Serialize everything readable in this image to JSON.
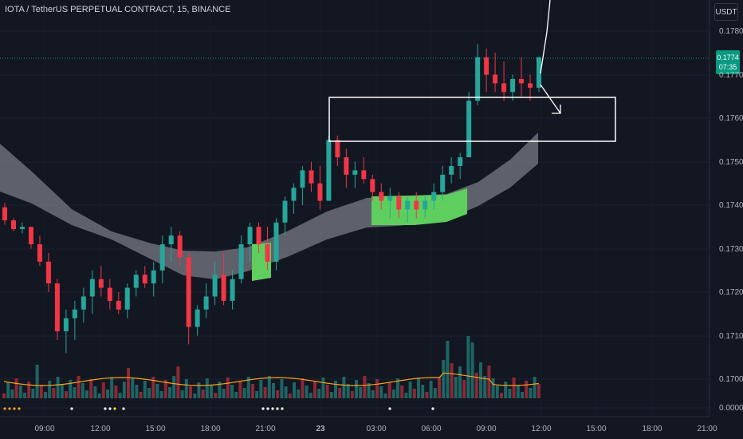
{
  "header": {
    "title": "IOTA / TetherUS PERPETUAL CONTRACT, 15, BINANCE"
  },
  "currency": "USDT",
  "last_price": {
    "value": "0.1774",
    "countdown": "07:35"
  },
  "colors": {
    "bull": "#26a69a",
    "bear": "#f23645",
    "zone": "#5ecf5e",
    "band": "#787b86",
    "ma": "#f7a21b",
    "bg": "#131722"
  },
  "chart_data": {
    "type": "candlestick",
    "y_ticks": [
      "0.1780",
      "0.1770",
      "0.1760",
      "0.1750",
      "0.1740",
      "0.1730",
      "0.1720",
      "0.1710",
      "0.1700",
      "0.0000"
    ],
    "x_ticks": [
      "09:00",
      "12:00",
      "15:00",
      "18:00",
      "21:00",
      "23",
      "03:00",
      "06:00",
      "09:00",
      "12:00",
      "15:00",
      "18:00",
      "21:00"
    ],
    "candles": [
      {
        "o": 0.17395,
        "h": 0.17405,
        "l": 0.17355,
        "c": 0.17365
      },
      {
        "o": 0.17365,
        "h": 0.1737,
        "l": 0.1734,
        "c": 0.17345
      },
      {
        "o": 0.17345,
        "h": 0.1736,
        "l": 0.17335,
        "c": 0.1735
      },
      {
        "o": 0.1735,
        "h": 0.1735,
        "l": 0.173,
        "c": 0.1731
      },
      {
        "o": 0.1731,
        "h": 0.1733,
        "l": 0.1726,
        "c": 0.1727
      },
      {
        "o": 0.1727,
        "h": 0.1729,
        "l": 0.172,
        "c": 0.1722
      },
      {
        "o": 0.1722,
        "h": 0.1723,
        "l": 0.1709,
        "c": 0.1711
      },
      {
        "o": 0.1711,
        "h": 0.1716,
        "l": 0.1706,
        "c": 0.1714
      },
      {
        "o": 0.1714,
        "h": 0.1718,
        "l": 0.1709,
        "c": 0.1716
      },
      {
        "o": 0.1716,
        "h": 0.1721,
        "l": 0.1713,
        "c": 0.1719
      },
      {
        "o": 0.1719,
        "h": 0.1725,
        "l": 0.1715,
        "c": 0.1723
      },
      {
        "o": 0.1723,
        "h": 0.1726,
        "l": 0.1719,
        "c": 0.1721
      },
      {
        "o": 0.1721,
        "h": 0.1723,
        "l": 0.1716,
        "c": 0.1718
      },
      {
        "o": 0.1718,
        "h": 0.172,
        "l": 0.1715,
        "c": 0.1716
      },
      {
        "o": 0.1716,
        "h": 0.1722,
        "l": 0.1714,
        "c": 0.1721
      },
      {
        "o": 0.1721,
        "h": 0.1725,
        "l": 0.1719,
        "c": 0.1724
      },
      {
        "o": 0.1724,
        "h": 0.1726,
        "l": 0.1721,
        "c": 0.1722
      },
      {
        "o": 0.1722,
        "h": 0.1727,
        "l": 0.1719,
        "c": 0.1725
      },
      {
        "o": 0.1725,
        "h": 0.1733,
        "l": 0.1722,
        "c": 0.1731
      },
      {
        "o": 0.1731,
        "h": 0.1735,
        "l": 0.1727,
        "c": 0.1733
      },
      {
        "o": 0.1733,
        "h": 0.1734,
        "l": 0.1726,
        "c": 0.1728
      },
      {
        "o": 0.1728,
        "h": 0.1729,
        "l": 0.1708,
        "c": 0.1712
      },
      {
        "o": 0.1712,
        "h": 0.1717,
        "l": 0.171,
        "c": 0.1716
      },
      {
        "o": 0.1716,
        "h": 0.1722,
        "l": 0.1714,
        "c": 0.1719
      },
      {
        "o": 0.1719,
        "h": 0.1727,
        "l": 0.1717,
        "c": 0.1724
      },
      {
        "o": 0.1724,
        "h": 0.1729,
        "l": 0.1717,
        "c": 0.1718
      },
      {
        "o": 0.1718,
        "h": 0.1725,
        "l": 0.1716,
        "c": 0.1723
      },
      {
        "o": 0.1723,
        "h": 0.1733,
        "l": 0.1722,
        "c": 0.1731
      },
      {
        "o": 0.1731,
        "h": 0.1736,
        "l": 0.1727,
        "c": 0.1735
      },
      {
        "o": 0.1735,
        "h": 0.1736,
        "l": 0.1729,
        "c": 0.1731
      },
      {
        "o": 0.1731,
        "h": 0.1735,
        "l": 0.1725,
        "c": 0.1727
      },
      {
        "o": 0.1727,
        "h": 0.1737,
        "l": 0.1725,
        "c": 0.1736
      },
      {
        "o": 0.1736,
        "h": 0.1742,
        "l": 0.1733,
        "c": 0.1741
      },
      {
        "o": 0.1741,
        "h": 0.1745,
        "l": 0.1738,
        "c": 0.1744
      },
      {
        "o": 0.1744,
        "h": 0.1749,
        "l": 0.174,
        "c": 0.1748
      },
      {
        "o": 0.1748,
        "h": 0.175,
        "l": 0.1743,
        "c": 0.1745
      },
      {
        "o": 0.1745,
        "h": 0.1749,
        "l": 0.1739,
        "c": 0.1741
      },
      {
        "o": 0.1741,
        "h": 0.1756,
        "l": 0.1741,
        "c": 0.1755
      },
      {
        "o": 0.1755,
        "h": 0.1756,
        "l": 0.1749,
        "c": 0.1751
      },
      {
        "o": 0.1751,
        "h": 0.1753,
        "l": 0.1744,
        "c": 0.1747
      },
      {
        "o": 0.1747,
        "h": 0.175,
        "l": 0.1744,
        "c": 0.1748
      },
      {
        "o": 0.1748,
        "h": 0.1751,
        "l": 0.1745,
        "c": 0.1746
      },
      {
        "o": 0.1746,
        "h": 0.1747,
        "l": 0.1741,
        "c": 0.1743
      },
      {
        "o": 0.1743,
        "h": 0.1745,
        "l": 0.1739,
        "c": 0.1741
      },
      {
        "o": 0.1741,
        "h": 0.1744,
        "l": 0.1737,
        "c": 0.1742
      },
      {
        "o": 0.1742,
        "h": 0.1743,
        "l": 0.1737,
        "c": 0.1739
      },
      {
        "o": 0.1739,
        "h": 0.1742,
        "l": 0.1736,
        "c": 0.1741
      },
      {
        "o": 0.1741,
        "h": 0.1743,
        "l": 0.1737,
        "c": 0.1739
      },
      {
        "o": 0.1739,
        "h": 0.1742,
        "l": 0.1737,
        "c": 0.1741
      },
      {
        "o": 0.1741,
        "h": 0.1745,
        "l": 0.1739,
        "c": 0.1743
      },
      {
        "o": 0.1743,
        "h": 0.1749,
        "l": 0.1741,
        "c": 0.1747
      },
      {
        "o": 0.1747,
        "h": 0.1751,
        "l": 0.1745,
        "c": 0.1749
      },
      {
        "o": 0.1749,
        "h": 0.1752,
        "l": 0.1746,
        "c": 0.1751
      },
      {
        "o": 0.1751,
        "h": 0.1766,
        "l": 0.1751,
        "c": 0.1764
      },
      {
        "o": 0.1764,
        "h": 0.1777,
        "l": 0.1763,
        "c": 0.1774
      },
      {
        "o": 0.1774,
        "h": 0.1776,
        "l": 0.1766,
        "c": 0.177
      },
      {
        "o": 0.177,
        "h": 0.1775,
        "l": 0.1766,
        "c": 0.1768
      },
      {
        "o": 0.1768,
        "h": 0.1773,
        "l": 0.1764,
        "c": 0.1766
      },
      {
        "o": 0.1766,
        "h": 0.177,
        "l": 0.1764,
        "c": 0.1769
      },
      {
        "o": 0.1769,
        "h": 0.1774,
        "l": 0.1765,
        "c": 0.1768
      },
      {
        "o": 0.1768,
        "h": 0.177,
        "l": 0.1764,
        "c": 0.1767
      },
      {
        "o": 0.1767,
        "h": 0.1774,
        "l": 0.1766,
        "c": 0.1774
      }
    ]
  }
}
